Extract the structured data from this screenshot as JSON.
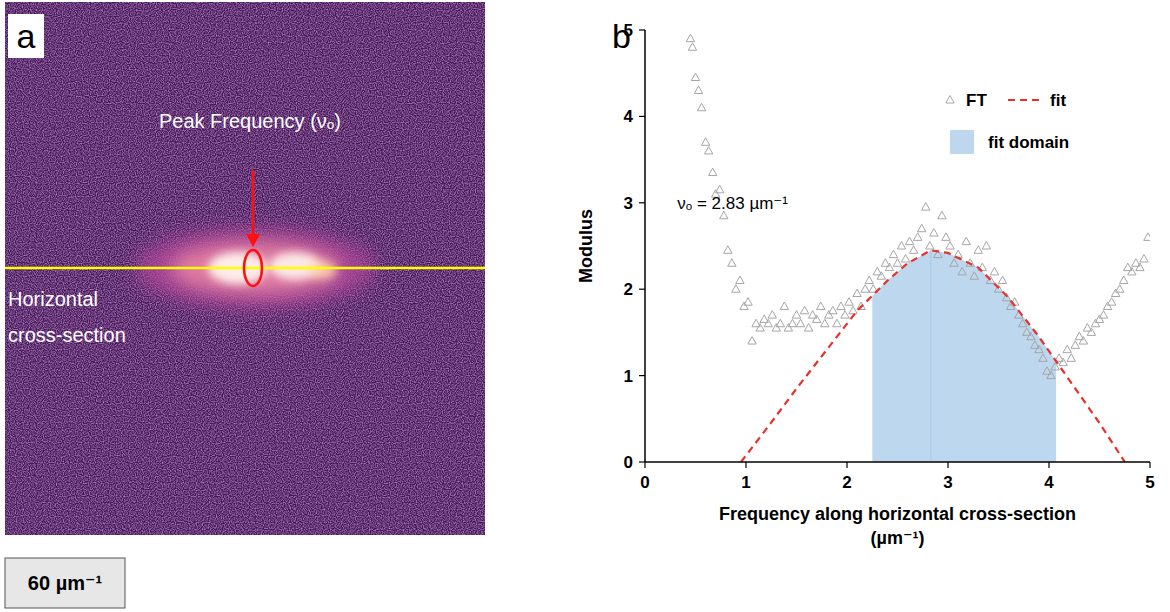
{
  "chart_data": {
    "type": "scatter",
    "panel": "b",
    "x_label": "Frequency along horizontal cross-section (µm⁻¹)",
    "y_label": "Modulus",
    "xlim": [
      0,
      5
    ],
    "ylim": [
      0,
      5
    ],
    "xticks": [
      0,
      1,
      2,
      3,
      4,
      5
    ],
    "yticks": [
      0,
      1,
      2,
      3,
      4,
      5
    ],
    "legend": "top-right",
    "annotation": "νₒ = 2.83 µm⁻¹",
    "peak_frequency": 2.83,
    "shaded_region": {
      "name": "fit domain",
      "color": "#bdd7ee",
      "x": [
        2.25,
        4.07
      ]
    },
    "series": [
      {
        "name": "FT",
        "type": "scatter",
        "marker": "triangle",
        "color": "#a6a6a6",
        "x": [
          0.45,
          0.47,
          0.5,
          0.53,
          0.56,
          0.6,
          0.63,
          0.67,
          0.7,
          0.74,
          0.78,
          0.82,
          0.86,
          0.9,
          0.94,
          0.98,
          1.02,
          1.06,
          1.1,
          1.14,
          1.18,
          1.22,
          1.26,
          1.3,
          1.34,
          1.38,
          1.42,
          1.46,
          1.5,
          1.54,
          1.58,
          1.62,
          1.66,
          1.7,
          1.74,
          1.78,
          1.82,
          1.86,
          1.9,
          1.94,
          1.98,
          2.02,
          2.06,
          2.1,
          2.14,
          2.18,
          2.22,
          2.26,
          2.3,
          2.34,
          2.38,
          2.42,
          2.46,
          2.5,
          2.54,
          2.58,
          2.62,
          2.66,
          2.7,
          2.74,
          2.78,
          2.82,
          2.86,
          2.9,
          2.94,
          2.98,
          3.02,
          3.06,
          3.1,
          3.14,
          3.18,
          3.22,
          3.26,
          3.3,
          3.34,
          3.38,
          3.42,
          3.46,
          3.5,
          3.54,
          3.58,
          3.62,
          3.66,
          3.7,
          3.74,
          3.78,
          3.82,
          3.86,
          3.9,
          3.94,
          3.98,
          4.02,
          4.06,
          4.1,
          4.14,
          4.18,
          4.22,
          4.26,
          4.3,
          4.34,
          4.38,
          4.42,
          4.46,
          4.5,
          4.54,
          4.58,
          4.62,
          4.66,
          4.7,
          4.74,
          4.78,
          4.82,
          4.86,
          4.9,
          4.94,
          4.98
        ],
        "values": [
          4.9,
          4.8,
          4.45,
          4.3,
          4.1,
          3.7,
          3.6,
          3.35,
          3.1,
          3.15,
          2.85,
          2.45,
          2.3,
          2.0,
          2.1,
          1.8,
          1.85,
          1.4,
          1.6,
          1.55,
          1.65,
          1.6,
          1.7,
          1.55,
          1.6,
          1.8,
          1.55,
          1.6,
          1.7,
          1.6,
          1.75,
          1.55,
          1.7,
          1.65,
          1.8,
          1.6,
          1.7,
          1.75,
          1.6,
          1.8,
          1.7,
          1.85,
          1.75,
          1.95,
          1.8,
          2.0,
          2.1,
          2.0,
          2.2,
          2.15,
          2.3,
          2.25,
          2.4,
          2.3,
          2.5,
          2.35,
          2.55,
          2.45,
          2.6,
          2.7,
          2.95,
          2.5,
          2.65,
          2.4,
          2.85,
          2.6,
          2.5,
          2.3,
          2.4,
          2.2,
          2.55,
          2.3,
          2.15,
          2.45,
          2.25,
          2.5,
          2.1,
          2.2,
          2.0,
          2.1,
          1.9,
          1.8,
          1.85,
          1.7,
          1.6,
          1.5,
          1.45,
          1.35,
          1.3,
          1.2,
          1.05,
          1.0,
          1.1,
          1.2,
          1.15,
          1.3,
          1.2,
          1.35,
          1.45,
          1.4,
          1.55,
          1.5,
          1.6,
          1.65,
          1.7,
          1.8,
          1.85,
          1.95,
          2.0,
          2.1,
          2.25,
          2.2,
          2.3,
          2.25,
          2.35,
          2.6
        ]
      },
      {
        "name": "fit",
        "type": "line",
        "line_style": "dashed",
        "color": "#e8312a",
        "x": [
          0.95,
          1.2,
          1.5,
          1.8,
          2.1,
          2.4,
          2.6,
          2.83,
          3.0,
          3.3,
          3.6,
          3.9,
          4.2,
          4.5,
          4.75
        ],
        "values": [
          0,
          0.38,
          0.85,
          1.3,
          1.75,
          2.1,
          2.3,
          2.45,
          2.42,
          2.25,
          1.9,
          1.45,
          0.95,
          0.45,
          0
        ]
      }
    ]
  },
  "image_panel": {
    "letter": "a",
    "peak_label": "Peak Frequency (νₒ)",
    "cross_section_label": "Horizontal cross-section",
    "scale_label": "60 µm⁻¹"
  }
}
